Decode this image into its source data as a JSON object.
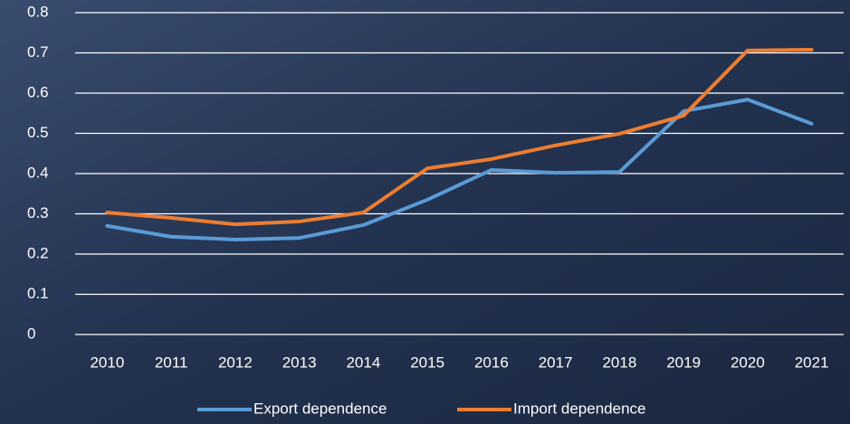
{
  "chart_data": {
    "type": "line",
    "categories": [
      "2010",
      "2011",
      "2012",
      "2013",
      "2014",
      "2015",
      "2016",
      "2017",
      "2018",
      "2019",
      "2020",
      "2021"
    ],
    "series": [
      {
        "name": "Export dependence",
        "color": "#5b9bd5",
        "values": [
          0.27,
          0.243,
          0.236,
          0.24,
          0.272,
          0.335,
          0.409,
          0.402,
          0.404,
          0.555,
          0.584,
          0.524
        ]
      },
      {
        "name": "Import dependence",
        "color": "#ed7d31",
        "values": [
          0.303,
          0.29,
          0.274,
          0.281,
          0.303,
          0.413,
          0.436,
          0.47,
          0.499,
          0.544,
          0.706,
          0.708
        ]
      }
    ],
    "ylim": [
      0,
      0.8
    ],
    "yticks": [
      0,
      0.1,
      0.2,
      0.3,
      0.4,
      0.5,
      0.6,
      0.7,
      0.8
    ],
    "grid": true,
    "legend": "bottom"
  }
}
